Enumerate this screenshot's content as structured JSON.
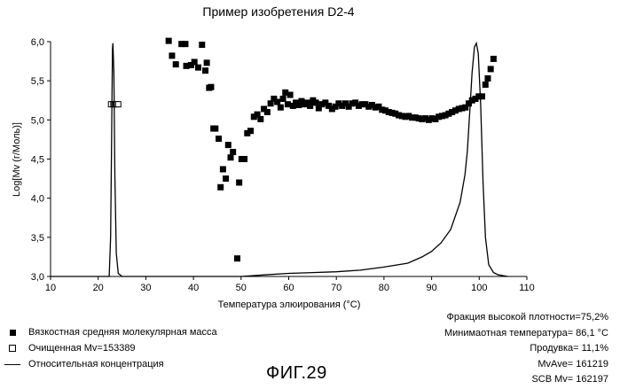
{
  "chart_data": {
    "type": "scatter",
    "title": "Пример изобретения D2-4",
    "xlabel": "Температура элюирования (°C)",
    "ylabel": "Log[Mv (г/Моль)]",
    "xlim": [
      10,
      110
    ],
    "ylim": [
      3.0,
      6.0
    ],
    "x_ticks": [
      "10",
      "20",
      "30",
      "40",
      "50",
      "60",
      "70",
      "80",
      "90",
      "100",
      "110"
    ],
    "y_ticks": [
      "3,0",
      "3,5",
      "4,0",
      "4,5",
      "5,0",
      "5,5",
      "6,0"
    ],
    "grid": false,
    "series": [
      {
        "name": "Вязкостная средняя молекулярная масса",
        "marker": "filled-square",
        "points": [
          [
            34.8,
            6.01
          ],
          [
            35.5,
            5.82
          ],
          [
            36.3,
            5.71
          ],
          [
            37.5,
            5.97
          ],
          [
            38.3,
            5.97
          ],
          [
            38.5,
            5.69
          ],
          [
            39.5,
            5.7
          ],
          [
            40.2,
            5.74
          ],
          [
            41.0,
            5.67
          ],
          [
            41.8,
            5.96
          ],
          [
            42.5,
            5.63
          ],
          [
            42.8,
            5.73
          ],
          [
            43.3,
            5.41
          ],
          [
            43.7,
            5.42
          ],
          [
            44.2,
            4.89
          ],
          [
            44.6,
            4.89
          ],
          [
            45.3,
            4.76
          ],
          [
            45.7,
            4.14
          ],
          [
            46.2,
            4.37
          ],
          [
            46.8,
            4.25
          ],
          [
            47.3,
            4.68
          ],
          [
            47.8,
            4.52
          ],
          [
            48.3,
            4.59
          ],
          [
            49.2,
            3.23
          ],
          [
            49.6,
            4.2
          ],
          [
            50.1,
            4.5
          ],
          [
            50.7,
            4.5
          ],
          [
            51.3,
            4.83
          ],
          [
            52.0,
            4.86
          ],
          [
            52.7,
            5.04
          ],
          [
            53.4,
            5.07
          ],
          [
            54.1,
            5.01
          ],
          [
            54.8,
            5.14
          ],
          [
            55.5,
            5.1
          ],
          [
            56.2,
            5.21
          ],
          [
            56.9,
            5.27
          ],
          [
            57.6,
            5.23
          ],
          [
            58.3,
            5.16
          ],
          [
            58.8,
            5.27
          ],
          [
            59.3,
            5.35
          ],
          [
            59.8,
            5.2
          ],
          [
            60.3,
            5.32
          ],
          [
            60.9,
            5.18
          ],
          [
            61.5,
            5.22
          ],
          [
            62.1,
            5.19
          ],
          [
            62.7,
            5.24
          ],
          [
            63.3,
            5.2
          ],
          [
            63.9,
            5.22
          ],
          [
            64.5,
            5.18
          ],
          [
            65.1,
            5.25
          ],
          [
            65.7,
            5.22
          ],
          [
            66.3,
            5.15
          ],
          [
            67.0,
            5.2
          ],
          [
            67.7,
            5.22
          ],
          [
            68.4,
            5.18
          ],
          [
            69.1,
            5.14
          ],
          [
            69.8,
            5.17
          ],
          [
            70.5,
            5.21
          ],
          [
            71.2,
            5.18
          ],
          [
            71.9,
            5.21
          ],
          [
            72.6,
            5.17
          ],
          [
            73.3,
            5.21
          ],
          [
            74.0,
            5.22
          ],
          [
            74.7,
            5.18
          ],
          [
            75.4,
            5.2
          ],
          [
            76.1,
            5.2
          ],
          [
            76.8,
            5.17
          ],
          [
            77.5,
            5.19
          ],
          [
            78.2,
            5.16
          ],
          [
            78.9,
            5.17
          ],
          [
            79.6,
            5.13
          ],
          [
            80.3,
            5.12
          ],
          [
            81.0,
            5.1
          ],
          [
            81.7,
            5.09
          ],
          [
            82.4,
            5.08
          ],
          [
            83.1,
            5.06
          ],
          [
            83.8,
            5.05
          ],
          [
            84.5,
            5.04
          ],
          [
            85.2,
            5.05
          ],
          [
            85.9,
            5.03
          ],
          [
            86.6,
            5.03
          ],
          [
            87.3,
            5.02
          ],
          [
            88.0,
            5.01
          ],
          [
            88.7,
            5.02
          ],
          [
            89.4,
            5.0
          ],
          [
            90.1,
            5.02
          ],
          [
            90.8,
            5.01
          ],
          [
            91.5,
            5.04
          ],
          [
            92.2,
            5.05
          ],
          [
            92.9,
            5.06
          ],
          [
            93.6,
            5.08
          ],
          [
            94.3,
            5.1
          ],
          [
            95.0,
            5.12
          ],
          [
            95.7,
            5.14
          ],
          [
            96.4,
            5.15
          ],
          [
            97.1,
            5.16
          ],
          [
            97.8,
            5.21
          ],
          [
            98.5,
            5.25
          ],
          [
            99.2,
            5.27
          ],
          [
            99.9,
            5.3
          ],
          [
            100.6,
            5.3
          ],
          [
            101.3,
            5.45
          ],
          [
            101.8,
            5.53
          ],
          [
            102.4,
            5.65
          ],
          [
            103.0,
            5.78
          ]
        ]
      },
      {
        "name": "Очищенная Mv=153389",
        "marker": "open-square",
        "points": [
          [
            22.7,
            5.2
          ],
          [
            23.2,
            5.2
          ],
          [
            23.7,
            5.2
          ],
          [
            24.2,
            5.2
          ]
        ]
      },
      {
        "name": "Относительная концентрация",
        "marker": "line",
        "points": [
          [
            10,
            3.0
          ],
          [
            22.3,
            3.0
          ],
          [
            22.6,
            3.5
          ],
          [
            22.8,
            4.6
          ],
          [
            23.0,
            5.9
          ],
          [
            23.1,
            5.98
          ],
          [
            23.3,
            5.6
          ],
          [
            23.5,
            4.3
          ],
          [
            23.8,
            3.3
          ],
          [
            24.2,
            3.04
          ],
          [
            25,
            3.0
          ],
          [
            40,
            3.0
          ],
          [
            50,
            3.0
          ],
          [
            55,
            3.02
          ],
          [
            60,
            3.04
          ],
          [
            65,
            3.05
          ],
          [
            70,
            3.06
          ],
          [
            75,
            3.08
          ],
          [
            80,
            3.12
          ],
          [
            85,
            3.17
          ],
          [
            88,
            3.25
          ],
          [
            90,
            3.32
          ],
          [
            92,
            3.43
          ],
          [
            94,
            3.6
          ],
          [
            96,
            3.95
          ],
          [
            97,
            4.3
          ],
          [
            97.5,
            4.6
          ],
          [
            98,
            5.1
          ],
          [
            98.5,
            5.6
          ],
          [
            99,
            5.93
          ],
          [
            99.4,
            5.98
          ],
          [
            99.8,
            5.85
          ],
          [
            100.3,
            5.2
          ],
          [
            100.8,
            4.2
          ],
          [
            101.3,
            3.5
          ],
          [
            102,
            3.15
          ],
          [
            103,
            3.05
          ],
          [
            104,
            3.02
          ],
          [
            106,
            3.0
          ]
        ]
      }
    ],
    "legend": [
      {
        "marker": "filled-square",
        "label": "Вязкостная средняя молекулярная масса"
      },
      {
        "marker": "open-square",
        "label": "Очищенная Mv=153389"
      },
      {
        "marker": "line",
        "label": "Относительная концентрация"
      }
    ],
    "annotations": [
      "Фракция высокой плотности=75,2%",
      "Минимаотная температура= 86,1 °C",
      "Продувка= 11,1%",
      "MvAve= 161219",
      "SCB Mv= 162197"
    ],
    "figure_label": "ФИГ.29"
  }
}
